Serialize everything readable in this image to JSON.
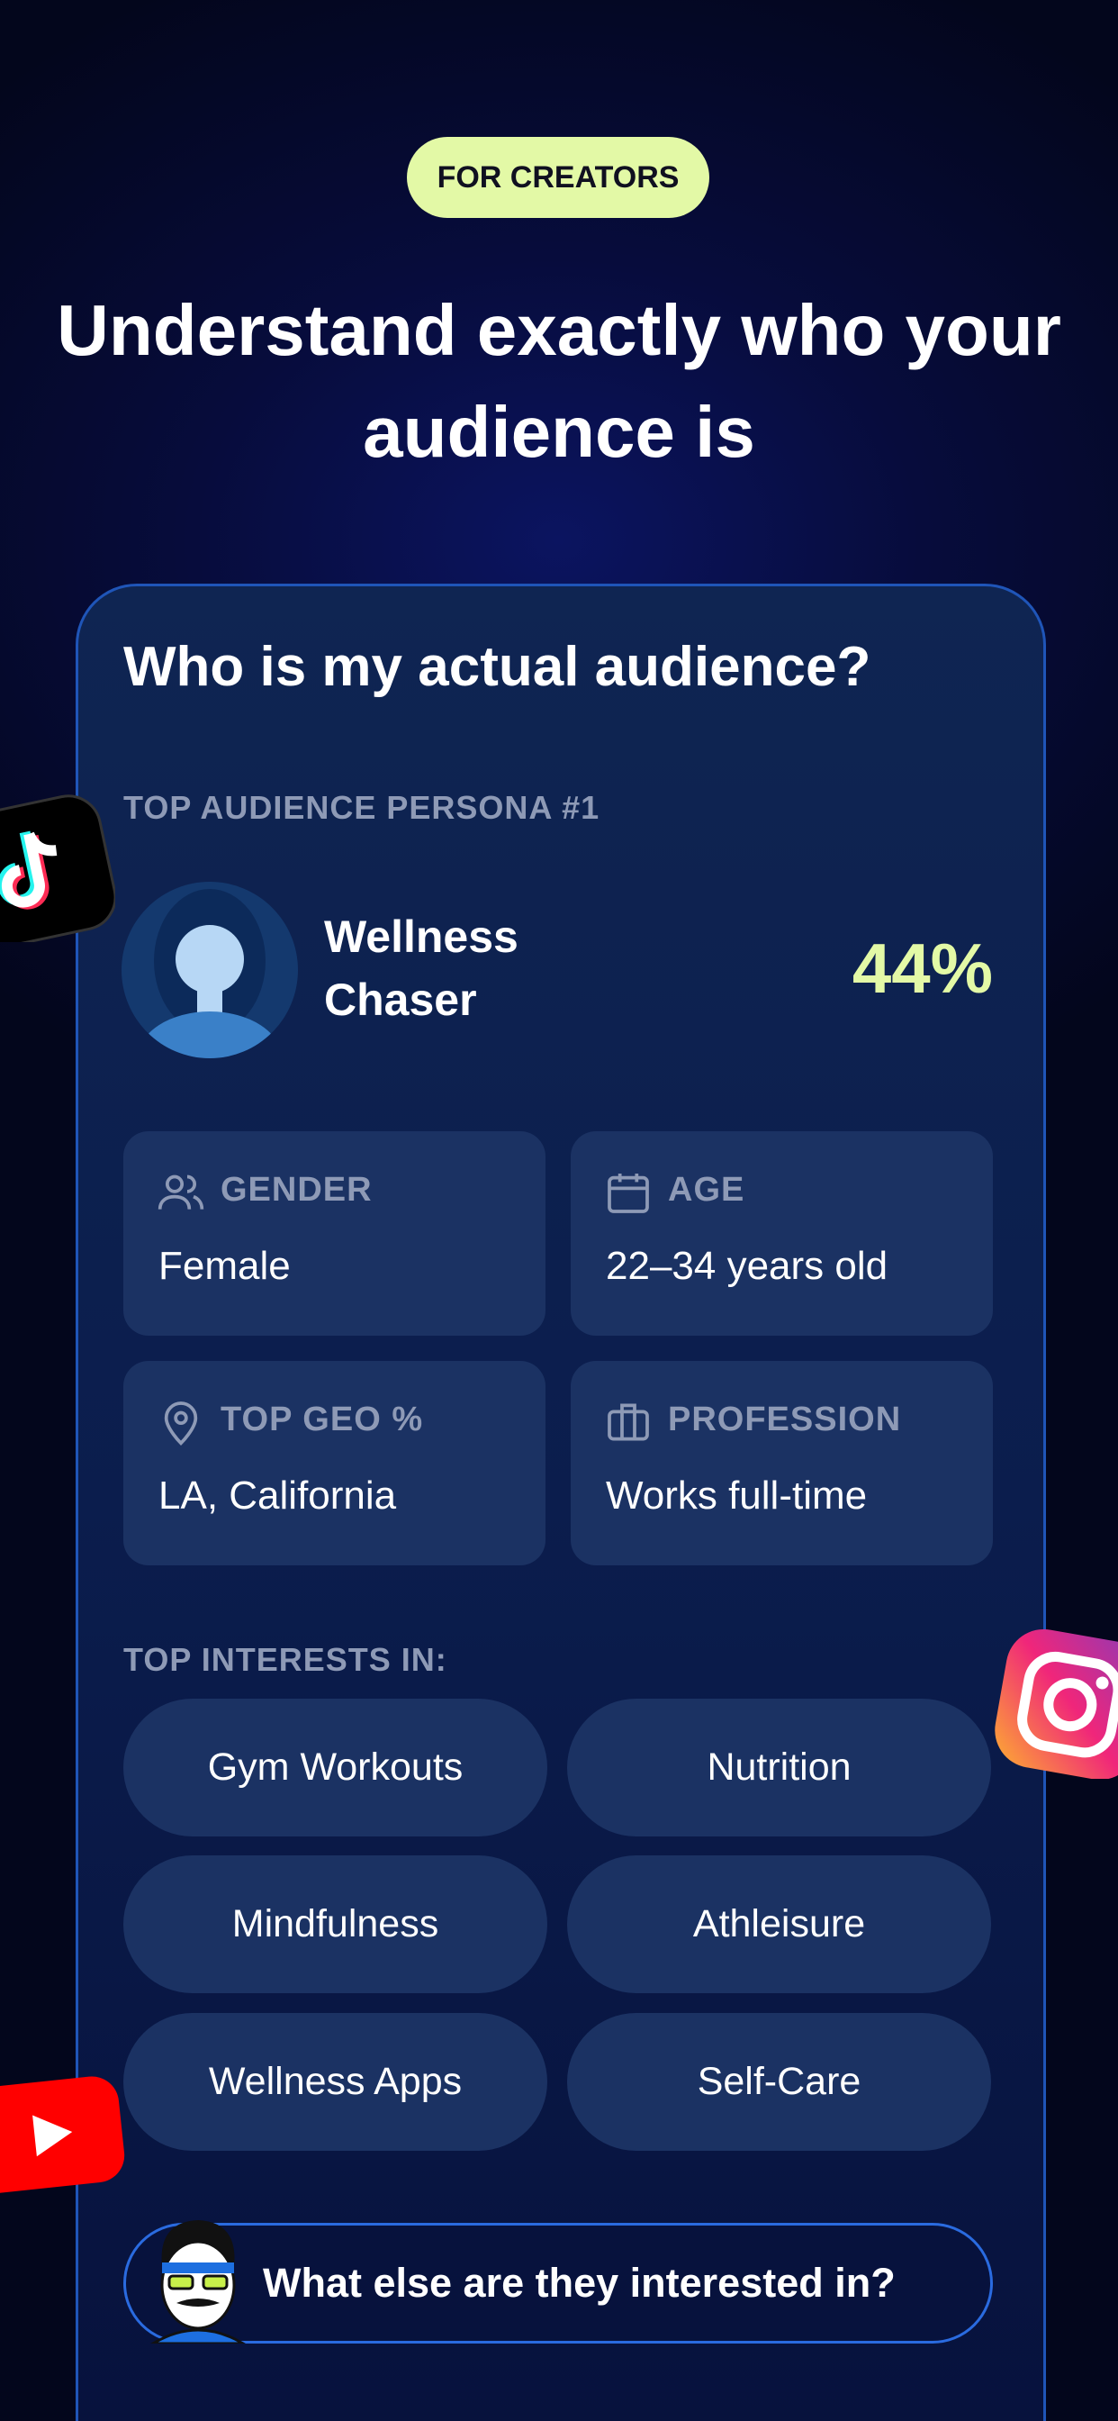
{
  "header": {
    "badge": "FOR CREATORS",
    "title": "Understand exactly who your audience is"
  },
  "card": {
    "title": "Who is my actual audience?",
    "persona_label": "TOP AUDIENCE PERSONA #1",
    "persona": {
      "name": "Wellness Chaser",
      "share": "44%"
    },
    "facts": [
      {
        "label": "GENDER",
        "value": "Female"
      },
      {
        "label": "AGE",
        "value": "22–34 years old"
      },
      {
        "label": "TOP GEO %",
        "value": "LA, California"
      },
      {
        "label": "PROFESSION",
        "value": "Works full-time"
      }
    ],
    "interests_label": "TOP INTERESTS IN:",
    "interests": [
      "Gym Workouts",
      "Nutrition",
      "Mindfulness",
      "Athleisure",
      "Wellness Apps",
      "Self-Care"
    ],
    "cta": "What else are they interested in?"
  }
}
